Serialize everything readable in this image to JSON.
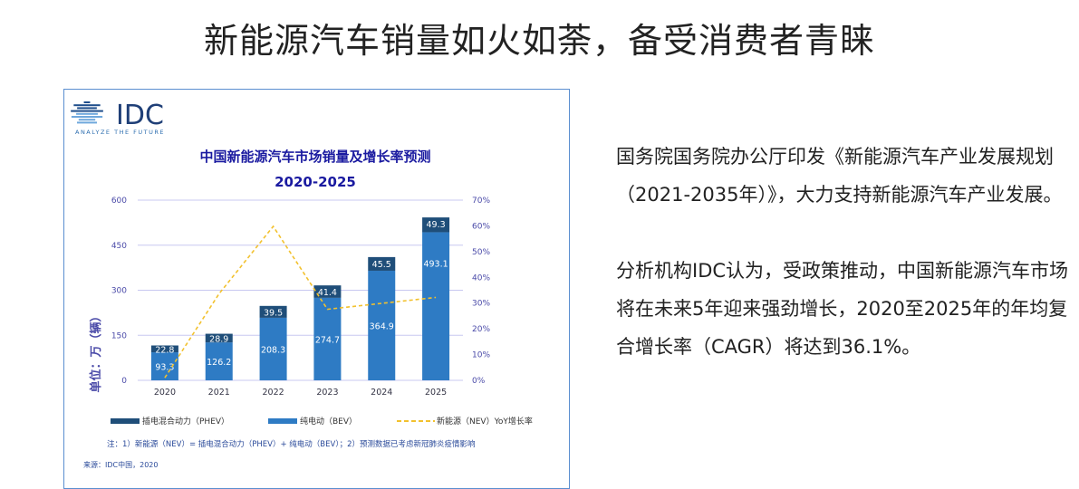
{
  "slide_title": "新能源汽车销量如火如荼，备受消费者青睐",
  "paragraphs": [
    "国务院国务院办公厅印发《新能源汽车产业发展规划（2021-2035年）》，大力支持新能源汽车产业发展。",
    "分析机构IDC认为，受政策推动，中国新能源汽车市场将在未来5年迎来强劲增长，2020至2025年的年均复合增长率（CAGR）将达到36.1%。"
  ],
  "logo": {
    "text": "IDC",
    "tagline": "ANALYZE THE FUTURE"
  },
  "colors": {
    "phev": "#1f4e79",
    "bev": "#2e7bc4",
    "yoy": "#f2c12e",
    "axis_text": "#4a4aa8",
    "title": "#1a1aa0",
    "grid": "#c8c8f0"
  },
  "chart_data": {
    "type": "bar",
    "stacked": true,
    "title": "中国新能源汽车市场销量及增长率预测",
    "subtitle": "2020-2025",
    "ylabel": "单位：万（辆）",
    "ylim": [
      0,
      600
    ],
    "yticks": [
      "0",
      "150",
      "300",
      "450",
      "600"
    ],
    "y2lim": [
      0,
      70
    ],
    "y2ticks": [
      "0%",
      "10%",
      "20%",
      "30%",
      "40%",
      "50%",
      "60%",
      "70%"
    ],
    "grid": true,
    "categories": [
      "2020",
      "2021",
      "2022",
      "2023",
      "2024",
      "2025"
    ],
    "series": [
      {
        "name": "纯电动（BEV）",
        "values": [
          93.3,
          126.2,
          208.3,
          274.7,
          364.9,
          493.1
        ],
        "labels": [
          "93.3",
          "126.2",
          "208.3",
          "274.7",
          "364.9",
          "493.1"
        ]
      },
      {
        "name": "插电混合动力（PHEV）",
        "values": [
          22.8,
          28.9,
          39.5,
          41.4,
          45.5,
          49.3
        ],
        "labels": [
          "22.8",
          "28.9",
          "39.5",
          "41.4",
          "45.5",
          "49.3"
        ]
      },
      {
        "name": "新能源（NEV）YoY增长率",
        "type": "line",
        "axis": "right",
        "values": [
          1,
          33.6,
          59.8,
          27.6,
          29.8,
          32.2
        ]
      }
    ],
    "legend_order": [
      "插电混合动力（PHEV）",
      "纯电动（BEV）",
      "新能源（NEV）YoY增长率"
    ],
    "legend": "bottom",
    "note": "注：1）新能源（NEV）= 插电混合动力（PHEV）+ 纯电动（BEV）；2）预测数据已考虑新冠肺炎疫情影响",
    "source": "来源：IDC中国，2020"
  }
}
